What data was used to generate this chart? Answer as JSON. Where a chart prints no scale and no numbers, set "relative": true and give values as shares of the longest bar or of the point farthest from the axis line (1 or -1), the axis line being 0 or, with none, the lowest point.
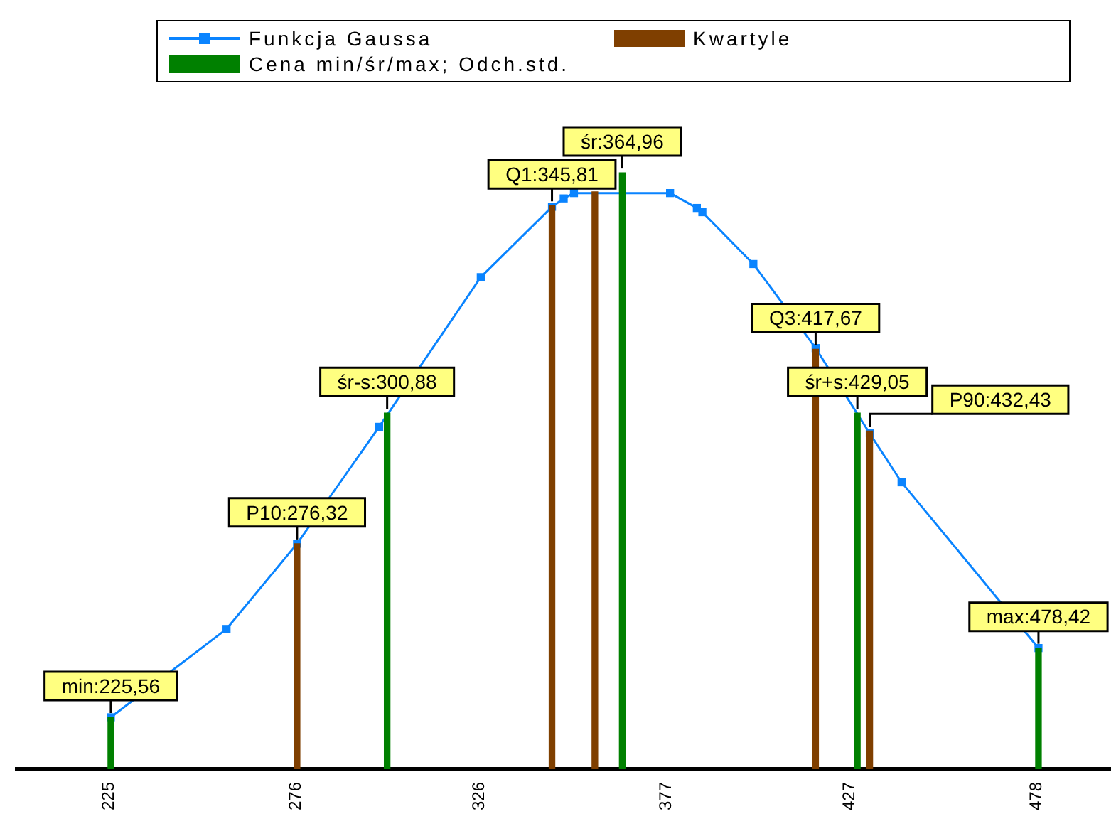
{
  "chart_data": {
    "type": "line",
    "relative": true,
    "legend": "top",
    "grid": false,
    "xlim": [
      200,
      498
    ],
    "xticks": [
      225,
      276,
      326,
      377,
      427,
      478
    ],
    "series": [
      {
        "name": "Funkcja Gaussa",
        "color": "#0a84ff",
        "marker": "square",
        "line_style": "solid",
        "x": [
          225.56,
          257.1,
          276.32,
          298.7,
          326.4,
          345.81,
          349.0,
          351.8,
          378.0,
          385.3,
          386.8,
          400.7,
          417.67,
          432.43,
          441.1,
          478.42
        ],
        "values": [
          0.087,
          0.235,
          0.378,
          0.574,
          0.825,
          0.943,
          0.957,
          0.966,
          0.966,
          0.941,
          0.934,
          0.847,
          0.706,
          0.563,
          0.481,
          0.203
        ]
      },
      {
        "name": "Kwartyle",
        "type": "bar",
        "color": "#7f3f00",
        "x": [
          276.32,
          345.81,
          357.5,
          417.67,
          432.43
        ],
        "values": [
          0.378,
          0.945,
          0.968,
          0.704,
          0.567
        ]
      },
      {
        "name": "Cena min/śr/max; Odch.std.",
        "type": "bar",
        "color": "#008000",
        "x": [
          225.56,
          300.88,
          364.96,
          429.05,
          478.42
        ],
        "values": [
          0.087,
          0.597,
          1,
          0.597,
          0.203
        ]
      }
    ],
    "annotations": [
      {
        "text": "min:225,56",
        "x": 225.56,
        "y": 0.087
      },
      {
        "text": "P10:276,32",
        "x": 276.32,
        "y": 0.378
      },
      {
        "text": "śr-s:300,88",
        "x": 300.88,
        "y": 0.597
      },
      {
        "text": "Q1:345,81",
        "x": 345.81,
        "y": 0.945
      },
      {
        "text": "śr:364,96",
        "x": 364.96,
        "y": 1
      },
      {
        "text": "Q3:417,67",
        "x": 417.67,
        "y": 0.704
      },
      {
        "text": "śr+s:429,05",
        "x": 429.05,
        "y": 0.597
      },
      {
        "text": "P90:432,43",
        "x": 432.43,
        "y": 0.567
      },
      {
        "text": "max:478,42",
        "x": 478.42,
        "y": 0.203
      }
    ]
  }
}
